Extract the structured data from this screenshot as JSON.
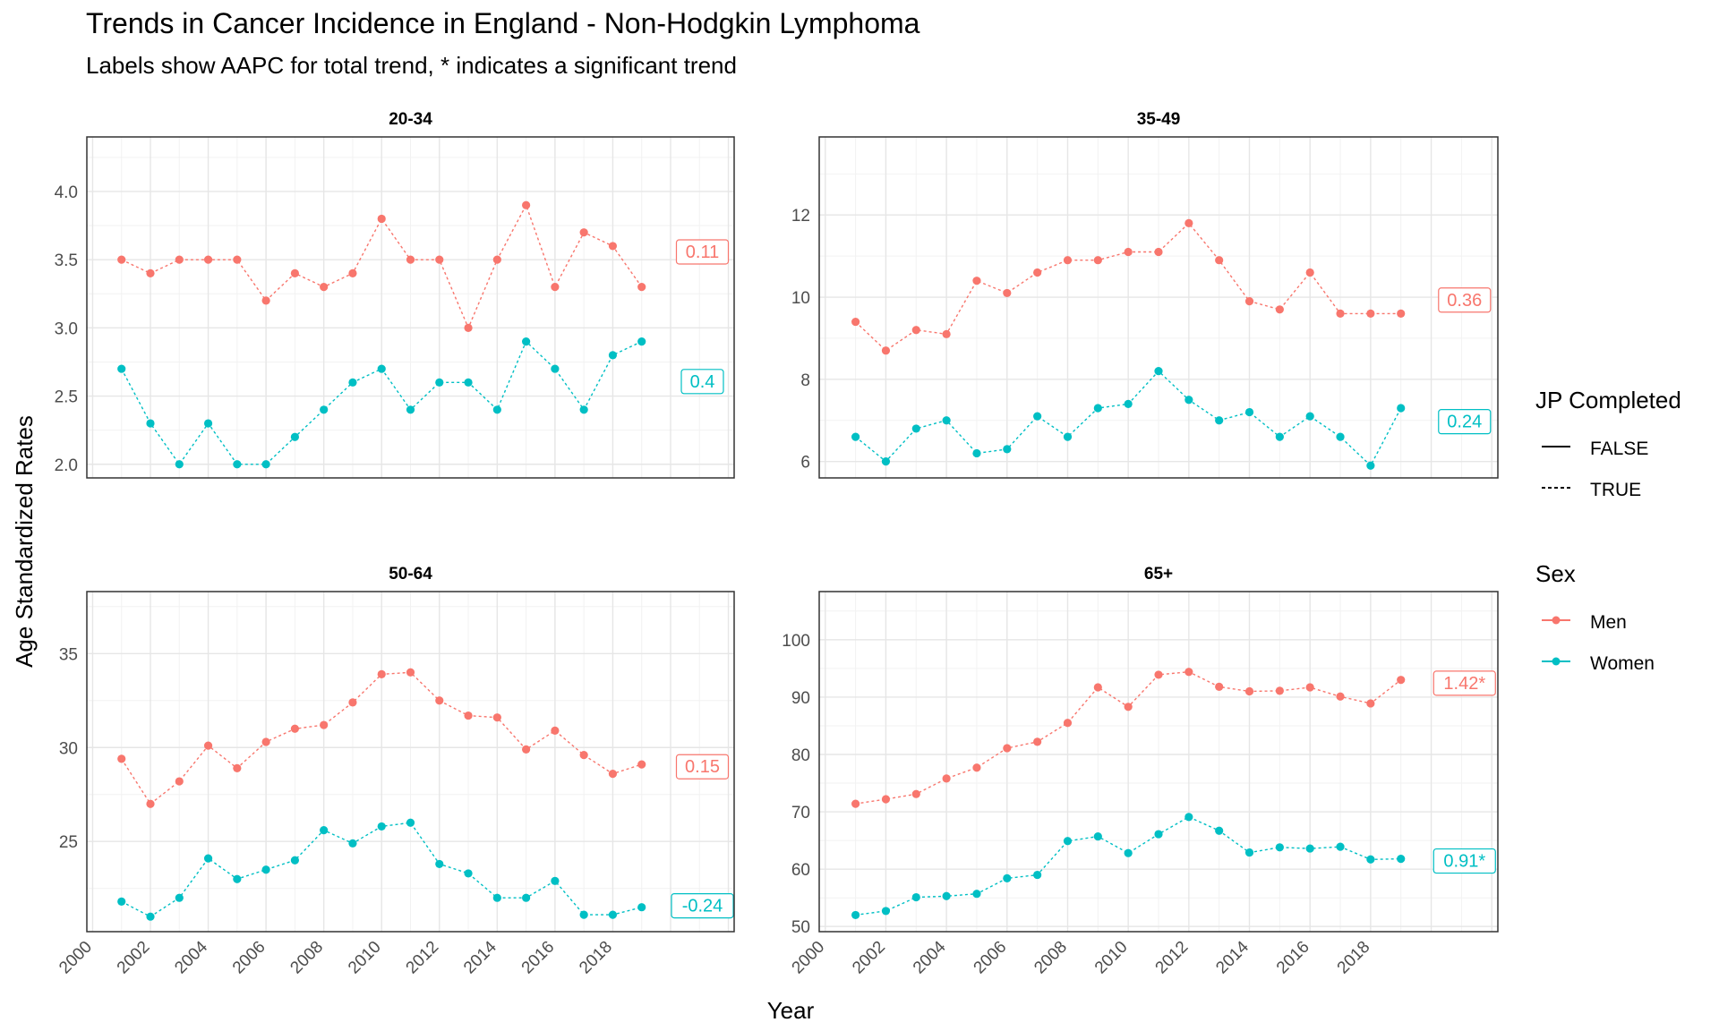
{
  "title": "Trends in Cancer Incidence in England - Non-Hodgkin Lymphoma",
  "subtitle": "Labels show AAPC for total trend, * indicates a significant trend",
  "xlabel": "Year",
  "ylabel": "Age Standardized Rates",
  "colors": {
    "Men": "#F8766D",
    "Women": "#00BFC4"
  },
  "legends": {
    "linetype": {
      "title": "JP Completed",
      "items": [
        "FALSE",
        "TRUE"
      ]
    },
    "sex": {
      "title": "Sex",
      "items": [
        "Men",
        "Women"
      ]
    }
  },
  "chart_data": [
    {
      "type": "line",
      "panel": "20-34",
      "x": [
        2001,
        2002,
        2003,
        2004,
        2005,
        2006,
        2007,
        2008,
        2009,
        2010,
        2011,
        2012,
        2013,
        2014,
        2015,
        2016,
        2017,
        2018,
        2019
      ],
      "xticks": [
        2000,
        2002,
        2004,
        2006,
        2008,
        2010,
        2012,
        2014,
        2016,
        2018
      ],
      "xlim": [
        1999.8,
        2022.2
      ],
      "ylim": [
        1.9,
        4.4
      ],
      "yticks": [
        2.0,
        2.5,
        3.0,
        3.5,
        4.0
      ],
      "ytick_labels": [
        "2.0",
        "2.5",
        "3.0",
        "3.5",
        "4.0"
      ],
      "series": [
        {
          "name": "Men",
          "values": [
            3.5,
            3.4,
            3.5,
            3.5,
            3.5,
            3.2,
            3.4,
            3.3,
            3.4,
            3.8,
            3.5,
            3.5,
            3.0,
            3.5,
            3.9,
            3.3,
            3.7,
            3.6,
            3.3
          ],
          "label_value": 3.56,
          "label": "0.11"
        },
        {
          "name": "Women",
          "values": [
            2.7,
            2.3,
            2.0,
            2.3,
            2.0,
            2.0,
            2.2,
            2.4,
            2.6,
            2.7,
            2.4,
            2.6,
            2.6,
            2.4,
            2.9,
            2.7,
            2.4,
            2.8,
            2.9
          ],
          "label_value": 2.61,
          "label": "0.4"
        }
      ]
    },
    {
      "type": "line",
      "panel": "35-49",
      "x": [
        2001,
        2002,
        2003,
        2004,
        2005,
        2006,
        2007,
        2008,
        2009,
        2010,
        2011,
        2012,
        2013,
        2014,
        2015,
        2016,
        2017,
        2018,
        2019
      ],
      "xticks": [
        2000,
        2002,
        2004,
        2006,
        2008,
        2010,
        2012,
        2014,
        2016,
        2018
      ],
      "xlim": [
        1999.8,
        2022.2
      ],
      "ylim": [
        5.6,
        13.9
      ],
      "yticks": [
        6,
        8,
        10,
        12
      ],
      "ytick_labels": [
        "6",
        "8",
        "10",
        "12"
      ],
      "series": [
        {
          "name": "Men",
          "values": [
            9.4,
            8.7,
            9.2,
            9.1,
            10.4,
            10.1,
            10.6,
            10.9,
            10.9,
            11.1,
            11.1,
            11.8,
            10.9,
            9.9,
            9.7,
            10.6,
            9.6,
            9.6,
            9.6
          ],
          "label_value": 9.94,
          "label": "0.36"
        },
        {
          "name": "Women",
          "values": [
            6.6,
            6.0,
            6.8,
            7.0,
            6.2,
            6.3,
            7.1,
            6.6,
            7.3,
            7.4,
            8.2,
            7.5,
            7.0,
            7.2,
            6.6,
            7.1,
            6.6,
            5.9,
            7.3
          ],
          "label_value": 6.98,
          "label": "0.24"
        }
      ]
    },
    {
      "type": "line",
      "panel": "50-64",
      "x": [
        2001,
        2002,
        2003,
        2004,
        2005,
        2006,
        2007,
        2008,
        2009,
        2010,
        2011,
        2012,
        2013,
        2014,
        2015,
        2016,
        2017,
        2018,
        2019
      ],
      "xticks": [
        2000,
        2002,
        2004,
        2006,
        2008,
        2010,
        2012,
        2014,
        2016,
        2018
      ],
      "xlim": [
        1999.8,
        2022.2
      ],
      "ylim": [
        20.2,
        38.3
      ],
      "yticks": [
        25,
        30,
        35
      ],
      "ytick_labels": [
        "25",
        "30",
        "35"
      ],
      "series": [
        {
          "name": "Men",
          "values": [
            29.4,
            27.0,
            28.2,
            30.1,
            28.9,
            30.3,
            31.0,
            31.2,
            32.4,
            33.9,
            34.0,
            32.5,
            31.7,
            31.6,
            29.9,
            30.9,
            29.6,
            28.6,
            29.1
          ],
          "label_value": 29.0,
          "label": "0.15"
        },
        {
          "name": "Women",
          "values": [
            21.8,
            21.0,
            22.0,
            24.1,
            23.0,
            23.5,
            24.0,
            25.6,
            24.9,
            25.8,
            26.0,
            23.8,
            23.3,
            22.0,
            22.0,
            22.9,
            21.1,
            21.1,
            21.5
          ],
          "label_value": 21.6,
          "label": "-0.24"
        }
      ]
    },
    {
      "type": "line",
      "panel": "65+",
      "x": [
        2001,
        2002,
        2003,
        2004,
        2005,
        2006,
        2007,
        2008,
        2009,
        2010,
        2011,
        2012,
        2013,
        2014,
        2015,
        2016,
        2017,
        2018,
        2019
      ],
      "xticks": [
        2000,
        2002,
        2004,
        2006,
        2008,
        2010,
        2012,
        2014,
        2016,
        2018
      ],
      "xlim": [
        1999.8,
        2022.2
      ],
      "ylim": [
        49.1,
        108.4
      ],
      "yticks": [
        50,
        60,
        70,
        80,
        90,
        100
      ],
      "ytick_labels": [
        "50",
        "60",
        "70",
        "80",
        "90",
        "100"
      ],
      "series": [
        {
          "name": "Men",
          "values": [
            71.4,
            72.2,
            73.1,
            75.8,
            77.7,
            81.1,
            82.2,
            85.5,
            91.7,
            88.3,
            93.9,
            94.4,
            91.8,
            91.0,
            91.1,
            91.7,
            90.1,
            88.9,
            93.0
          ],
          "label_value": 92.5,
          "label": "1.42*"
        },
        {
          "name": "Women",
          "values": [
            52.0,
            52.7,
            55.1,
            55.3,
            55.7,
            58.4,
            59.0,
            64.9,
            65.7,
            62.8,
            66.1,
            69.1,
            66.7,
            62.9,
            63.8,
            63.6,
            63.9,
            61.7,
            61.8
          ],
          "label_value": 61.5,
          "label": "0.91*"
        }
      ]
    }
  ]
}
